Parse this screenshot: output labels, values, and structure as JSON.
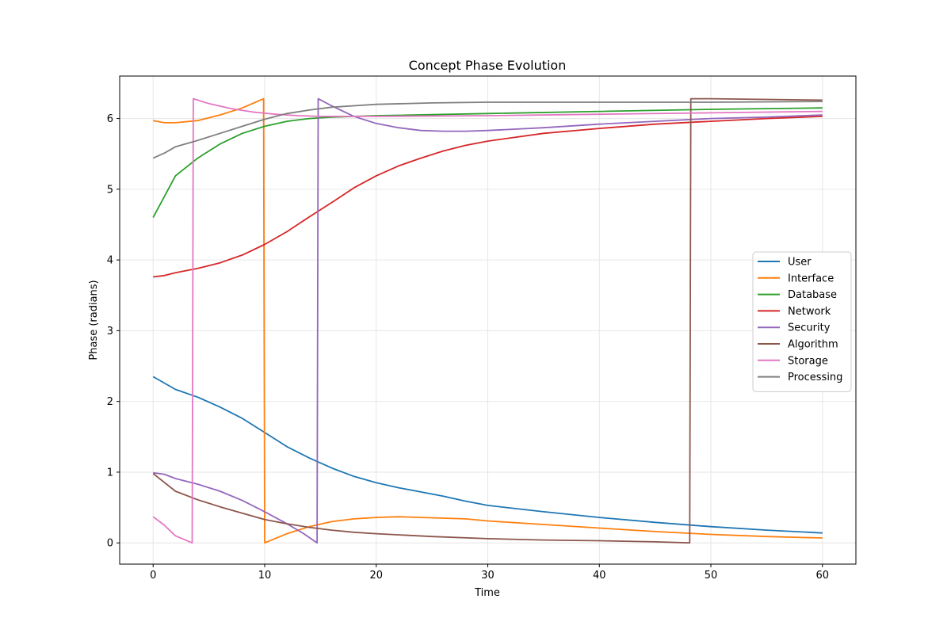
{
  "chart_data": {
    "type": "line",
    "title": "Concept Phase Evolution",
    "xlabel": "Time",
    "ylabel": "Phase (radians)",
    "xlim": [
      -3,
      63
    ],
    "ylim": [
      -0.3,
      6.6
    ],
    "xticks": [
      0,
      10,
      20,
      30,
      40,
      50,
      60
    ],
    "yticks": [
      0,
      1,
      2,
      3,
      4,
      5,
      6
    ],
    "grid": true,
    "legend_position": "center-right",
    "series": [
      {
        "name": "User",
        "color": "#1f77b4",
        "points": [
          [
            0,
            2.35
          ],
          [
            2,
            2.17
          ],
          [
            4,
            2.06
          ],
          [
            6,
            1.92
          ],
          [
            8,
            1.76
          ],
          [
            10,
            1.56
          ],
          [
            12,
            1.36
          ],
          [
            14,
            1.2
          ],
          [
            16,
            1.06
          ],
          [
            18,
            0.94
          ],
          [
            20,
            0.85
          ],
          [
            22,
            0.78
          ],
          [
            24,
            0.72
          ],
          [
            26,
            0.66
          ],
          [
            28,
            0.59
          ],
          [
            30,
            0.53
          ],
          [
            35,
            0.44
          ],
          [
            40,
            0.36
          ],
          [
            45,
            0.29
          ],
          [
            50,
            0.23
          ],
          [
            55,
            0.18
          ],
          [
            60,
            0.14
          ]
        ]
      },
      {
        "name": "Interface",
        "color": "#ff7f0e",
        "points": [
          [
            0,
            5.97
          ],
          [
            1,
            5.94
          ],
          [
            2,
            5.94
          ],
          [
            4,
            5.97
          ],
          [
            6,
            6.05
          ],
          [
            8,
            6.15
          ],
          [
            9.9,
            6.28
          ],
          [
            10.0,
            0.0
          ],
          [
            12,
            0.13
          ],
          [
            14,
            0.23
          ],
          [
            16,
            0.3
          ],
          [
            18,
            0.34
          ],
          [
            20,
            0.36
          ],
          [
            22,
            0.37
          ],
          [
            24,
            0.36
          ],
          [
            26,
            0.35
          ],
          [
            28,
            0.34
          ],
          [
            30,
            0.31
          ],
          [
            35,
            0.26
          ],
          [
            40,
            0.21
          ],
          [
            45,
            0.16
          ],
          [
            50,
            0.12
          ],
          [
            55,
            0.09
          ],
          [
            60,
            0.07
          ]
        ]
      },
      {
        "name": "Database",
        "color": "#2ca02c",
        "points": [
          [
            0,
            4.6
          ],
          [
            2,
            5.19
          ],
          [
            4,
            5.44
          ],
          [
            6,
            5.64
          ],
          [
            8,
            5.79
          ],
          [
            10,
            5.89
          ],
          [
            12,
            5.96
          ],
          [
            14,
            6.0
          ],
          [
            16,
            6.02
          ],
          [
            20,
            6.04
          ],
          [
            30,
            6.07
          ],
          [
            40,
            6.1
          ],
          [
            50,
            6.13
          ],
          [
            60,
            6.15
          ]
        ]
      },
      {
        "name": "Network",
        "color": "#d62728",
        "points": [
          [
            0,
            3.76
          ],
          [
            1,
            3.78
          ],
          [
            2,
            3.82
          ],
          [
            4,
            3.88
          ],
          [
            6,
            3.96
          ],
          [
            8,
            4.07
          ],
          [
            10,
            4.22
          ],
          [
            12,
            4.4
          ],
          [
            14,
            4.61
          ],
          [
            16,
            4.81
          ],
          [
            18,
            5.02
          ],
          [
            20,
            5.19
          ],
          [
            22,
            5.33
          ],
          [
            24,
            5.44
          ],
          [
            26,
            5.54
          ],
          [
            28,
            5.62
          ],
          [
            30,
            5.68
          ],
          [
            35,
            5.79
          ],
          [
            40,
            5.86
          ],
          [
            45,
            5.92
          ],
          [
            50,
            5.96
          ],
          [
            55,
            6.0
          ],
          [
            60,
            6.03
          ]
        ]
      },
      {
        "name": "Security",
        "color": "#9467bd",
        "points": [
          [
            0,
            0.99
          ],
          [
            1,
            0.97
          ],
          [
            2,
            0.91
          ],
          [
            4,
            0.83
          ],
          [
            6,
            0.73
          ],
          [
            8,
            0.6
          ],
          [
            10,
            0.44
          ],
          [
            12,
            0.27
          ],
          [
            13.5,
            0.13
          ],
          [
            14.7,
            0.0
          ],
          [
            14.8,
            6.28
          ],
          [
            16,
            6.18
          ],
          [
            18,
            6.03
          ],
          [
            20,
            5.93
          ],
          [
            22,
            5.87
          ],
          [
            24,
            5.83
          ],
          [
            26,
            5.82
          ],
          [
            28,
            5.82
          ],
          [
            30,
            5.83
          ],
          [
            35,
            5.87
          ],
          [
            40,
            5.92
          ],
          [
            45,
            5.96
          ],
          [
            50,
            6.0
          ],
          [
            55,
            6.02
          ],
          [
            60,
            6.05
          ]
        ]
      },
      {
        "name": "Algorithm",
        "color": "#8c564b",
        "points": [
          [
            0,
            0.98
          ],
          [
            2,
            0.73
          ],
          [
            4,
            0.61
          ],
          [
            6,
            0.51
          ],
          [
            8,
            0.42
          ],
          [
            10,
            0.33
          ],
          [
            12,
            0.27
          ],
          [
            14,
            0.22
          ],
          [
            16,
            0.18
          ],
          [
            18,
            0.15
          ],
          [
            20,
            0.13
          ],
          [
            25,
            0.09
          ],
          [
            30,
            0.06
          ],
          [
            35,
            0.04
          ],
          [
            40,
            0.03
          ],
          [
            45,
            0.015
          ],
          [
            48.1,
            0.0
          ],
          [
            48.2,
            6.28
          ],
          [
            50,
            6.28
          ],
          [
            55,
            6.27
          ],
          [
            60,
            6.26
          ]
        ]
      },
      {
        "name": "Storage",
        "color": "#e377c2",
        "points": [
          [
            0,
            0.37
          ],
          [
            1,
            0.25
          ],
          [
            2,
            0.1
          ],
          [
            3.5,
            0.0
          ],
          [
            3.6,
            6.28
          ],
          [
            5,
            6.21
          ],
          [
            7,
            6.14
          ],
          [
            9,
            6.09
          ],
          [
            11,
            6.06
          ],
          [
            13,
            6.04
          ],
          [
            15,
            6.03
          ],
          [
            20,
            6.03
          ],
          [
            30,
            6.04
          ],
          [
            40,
            6.06
          ],
          [
            50,
            6.08
          ],
          [
            60,
            6.1
          ]
        ]
      },
      {
        "name": "Processing",
        "color": "#7f7f7f",
        "points": [
          [
            0,
            5.44
          ],
          [
            1,
            5.51
          ],
          [
            2,
            5.6
          ],
          [
            4,
            5.69
          ],
          [
            6,
            5.79
          ],
          [
            8,
            5.89
          ],
          [
            10,
            5.99
          ],
          [
            12,
            6.07
          ],
          [
            14,
            6.12
          ],
          [
            16,
            6.16
          ],
          [
            18,
            6.18
          ],
          [
            20,
            6.2
          ],
          [
            25,
            6.22
          ],
          [
            30,
            6.23
          ],
          [
            40,
            6.23
          ],
          [
            50,
            6.23
          ],
          [
            60,
            6.24
          ]
        ]
      }
    ]
  }
}
